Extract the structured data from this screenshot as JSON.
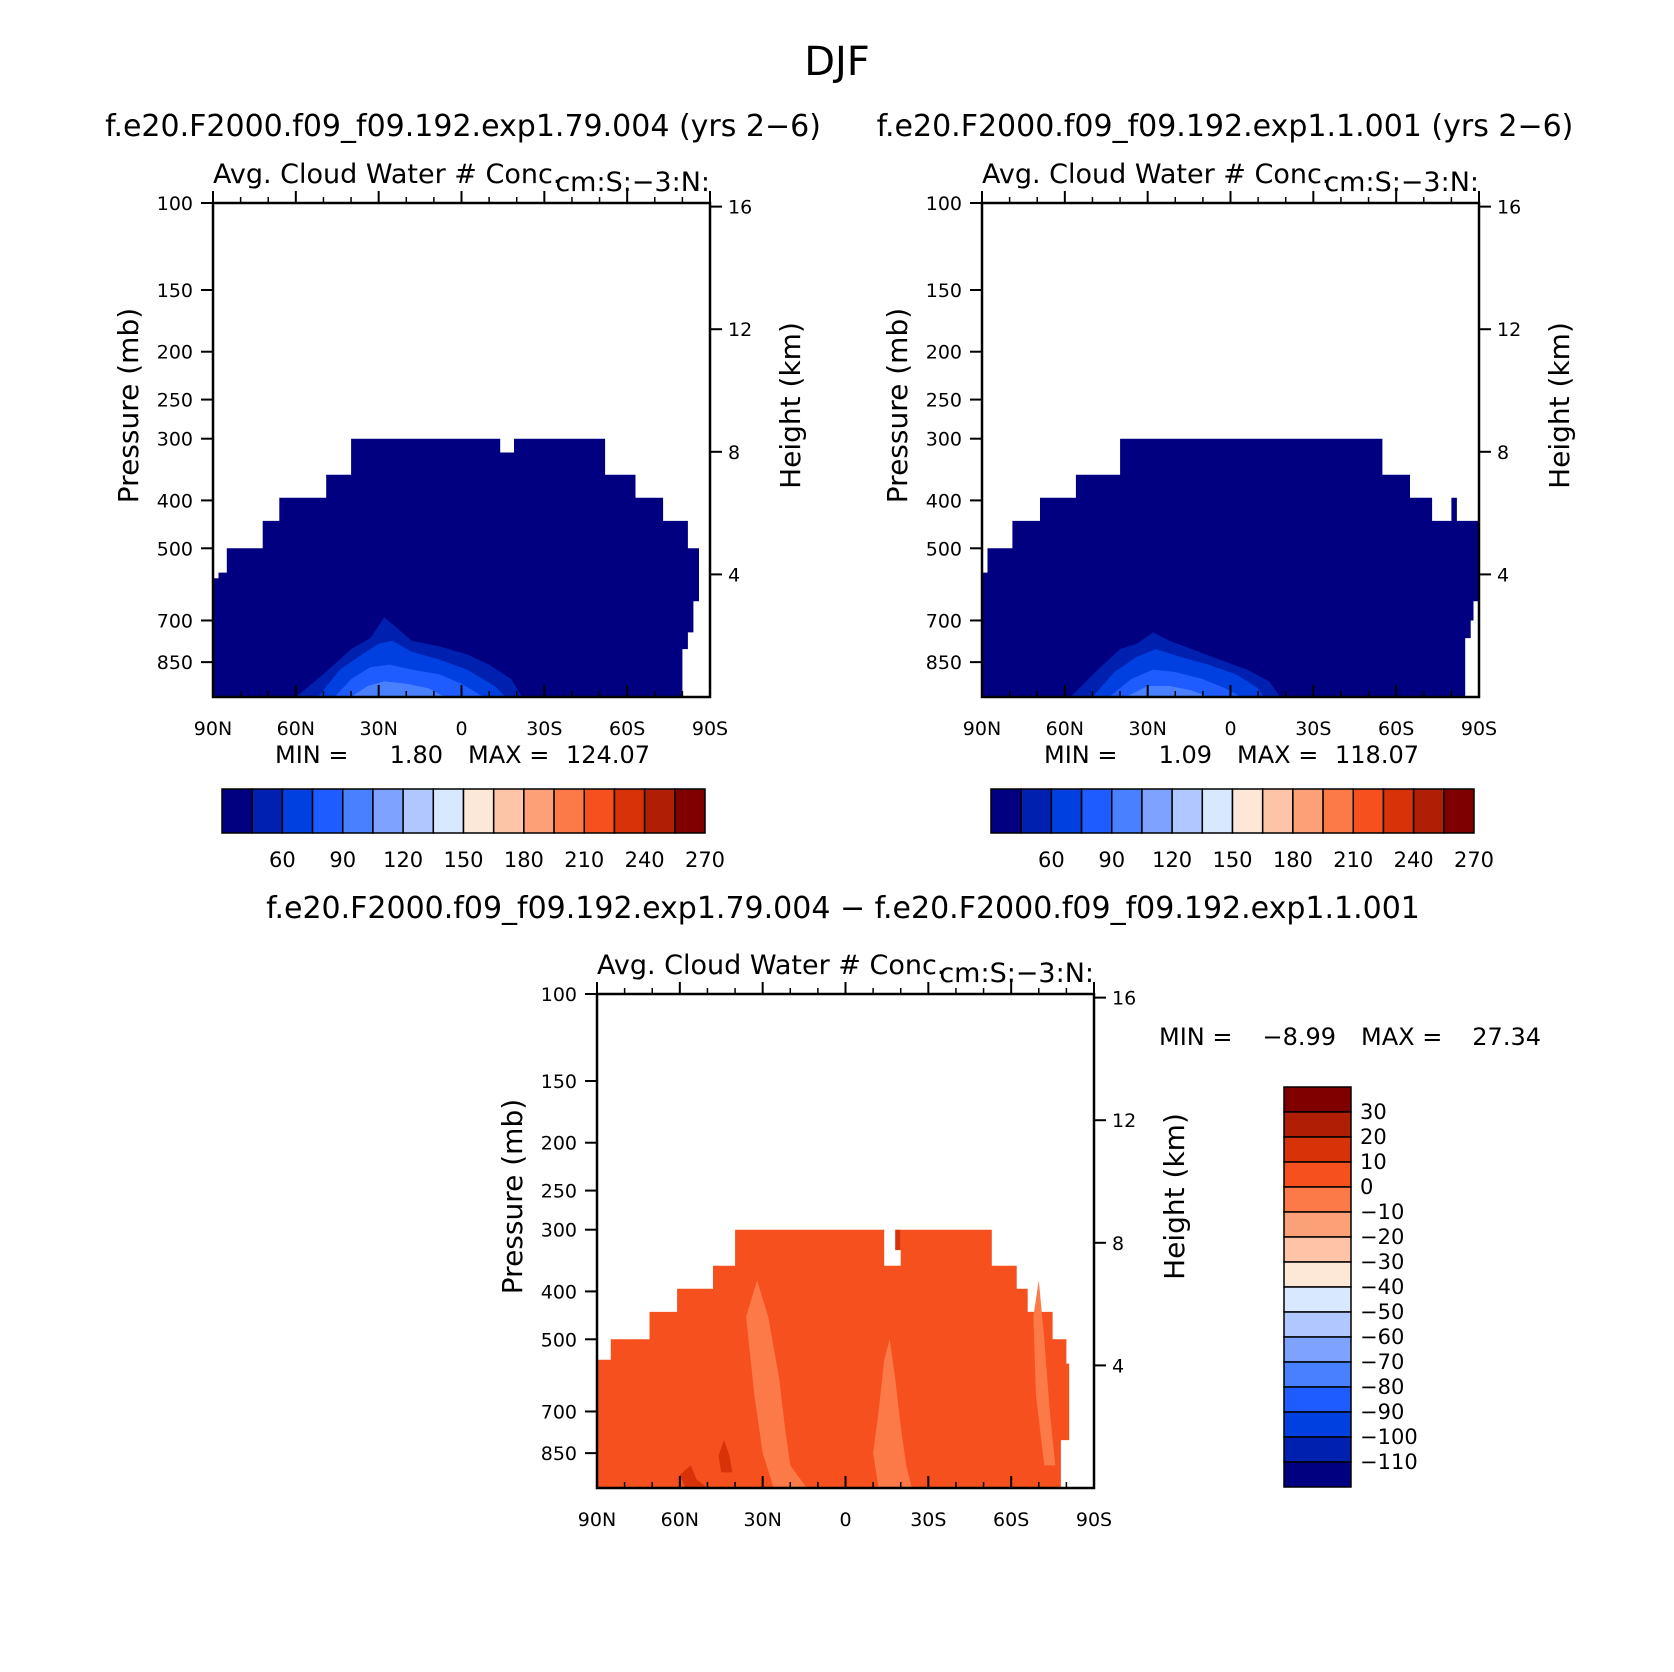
{
  "figure": {
    "title": "DJF",
    "panel_a_title": "f.e20.F2000.f09_f09.192.exp1.79.004 (yrs 2−6)",
    "panel_b_title": "f.e20.F2000.f09_f09.192.exp1.1.001 (yrs 2−6)",
    "panel_c_title": "f.e20.F2000.f09_f09.192.exp1.79.004 − f.e20.F2000.f09_f09.192.exp1.1.001"
  },
  "colors": {
    "blue_red_levels": [
      "#000080",
      "#0021b0",
      "#0040e0",
      "#1e5cff",
      "#4880ff",
      "#7ea2ff",
      "#b0c8ff",
      "#d7e8ff",
      "#fde8d8",
      "#fdc4a8",
      "#fca078",
      "#fb7a48",
      "#f5501e",
      "#d83208",
      "#b01e05",
      "#800000"
    ],
    "diff_levels": [
      "#000080",
      "#0021b0",
      "#0040e0",
      "#1e5cff",
      "#4880ff",
      "#7ea2ff",
      "#b0c8ff",
      "#d7e8ff",
      "#fde8d8",
      "#fdc4a8",
      "#fca078",
      "#fb7a48",
      "#f5501e",
      "#d83208",
      "#b01e05",
      "#800000"
    ]
  },
  "chart_data": [
    {
      "type": "heatmap",
      "panel": "a",
      "subtitle_left": "Avg. Cloud Water # Conc.",
      "subtitle_right": "cm:S:−3:N:",
      "ylabel": "Pressure (mb)",
      "y2label": "Height (km)",
      "x_ticks": [
        "90N",
        "60N",
        "30N",
        "0",
        "30S",
        "60S",
        "90S"
      ],
      "y_ticks": [
        "100",
        "150",
        "200",
        "250",
        "300",
        "400",
        "500",
        "700",
        "850"
      ],
      "y2_ticks": [
        "16",
        "12",
        "8",
        "4"
      ],
      "stats": {
        "min_label": "MIN =",
        "min": "1.80",
        "max_label": "MAX =",
        "max": "124.07"
      },
      "colorbar_labels": [
        "60",
        "90",
        "120",
        "150",
        "180",
        "210",
        "240",
        "270"
      ],
      "fill_color": "#000080"
    },
    {
      "type": "heatmap",
      "panel": "b",
      "subtitle_left": "Avg. Cloud Water # Conc.",
      "subtitle_right": "cm:S:−3:N:",
      "ylabel": "Pressure (mb)",
      "y2label": "Height (km)",
      "x_ticks": [
        "90N",
        "60N",
        "30N",
        "0",
        "30S",
        "60S",
        "90S"
      ],
      "y_ticks": [
        "100",
        "150",
        "200",
        "250",
        "300",
        "400",
        "500",
        "700",
        "850"
      ],
      "y2_ticks": [
        "16",
        "12",
        "8",
        "4"
      ],
      "stats": {
        "min_label": "MIN =",
        "min": "1.09",
        "max_label": "MAX =",
        "max": "118.07"
      },
      "colorbar_labels": [
        "60",
        "90",
        "120",
        "150",
        "180",
        "210",
        "240",
        "270"
      ],
      "fill_color": "#000080"
    },
    {
      "type": "heatmap",
      "panel": "c",
      "subtitle_left": "Avg. Cloud Water # Conc.",
      "subtitle_right": "cm:S:−3:N:",
      "ylabel": "Pressure (mb)",
      "y2label": "Height (km)",
      "x_ticks": [
        "90N",
        "60N",
        "30N",
        "0",
        "30S",
        "60S",
        "90S"
      ],
      "y_ticks": [
        "100",
        "150",
        "200",
        "250",
        "300",
        "400",
        "500",
        "700",
        "850"
      ],
      "y2_ticks": [
        "16",
        "12",
        "8",
        "4"
      ],
      "stats": {
        "min_label": "MIN =",
        "min": "−8.99",
        "max_label": "MAX =",
        "max": "27.34"
      },
      "colorbar_labels": [
        "30",
        "20",
        "10",
        "0",
        "−10",
        "−20",
        "−30",
        "−40",
        "−50",
        "−60",
        "−70",
        "−80",
        "−90",
        "−100",
        "−110"
      ],
      "fill_color": "#f5501e"
    }
  ]
}
